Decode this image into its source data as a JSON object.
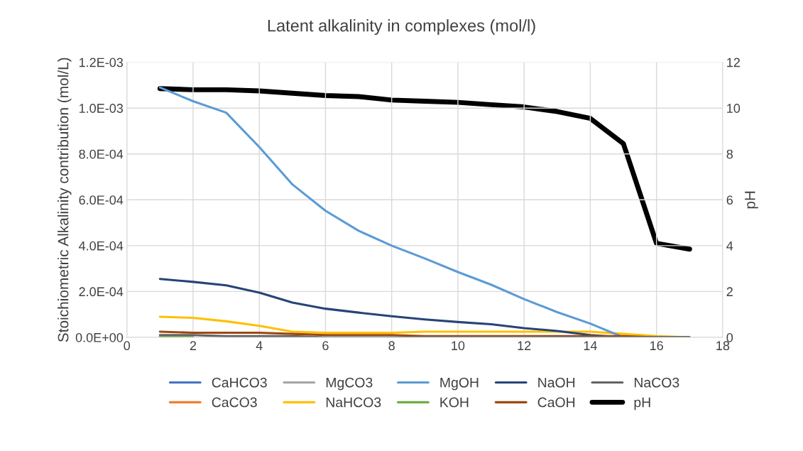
{
  "chart_data": {
    "type": "line",
    "title": "Latent alkalinity in complexes (mol/l)",
    "ylabel": "Stoichiometric Alkalinity contribution (mol/L)",
    "y2label": "pH",
    "x": [
      1,
      2,
      3,
      4,
      5,
      6,
      7,
      8,
      9,
      10,
      11,
      12,
      13,
      14,
      15,
      16,
      17
    ],
    "series": [
      {
        "name": "CaHCO3",
        "color": "#4472c4",
        "values": [
          null,
          null,
          null,
          null,
          null,
          null,
          null,
          null,
          null,
          null,
          null,
          null,
          null,
          null,
          null,
          null,
          null
        ]
      },
      {
        "name": "CaCO3",
        "color": "#ed7d31",
        "values": [
          null,
          null,
          null,
          null,
          null,
          null,
          null,
          null,
          null,
          null,
          null,
          null,
          null,
          null,
          null,
          null,
          null
        ]
      },
      {
        "name": "MgCO3",
        "color": "#a5a5a5",
        "values": [
          null,
          null,
          null,
          null,
          null,
          null,
          null,
          null,
          null,
          null,
          null,
          null,
          null,
          null,
          null,
          null,
          null
        ]
      },
      {
        "name": "NaHCO3",
        "color": "#ffc000",
        "values": [
          9e-05,
          8.5e-05,
          7e-05,
          5e-05,
          2.5e-05,
          2e-05,
          2e-05,
          2e-05,
          2.5e-05,
          2.5e-05,
          2.5e-05,
          2.5e-05,
          2.5e-05,
          2.5e-05,
          1.5e-05,
          5e-06,
          0.0
        ]
      },
      {
        "name": "MgOH",
        "color": "#5b9bd5",
        "values": [
          0.00109,
          0.00103,
          0.00098,
          0.00083,
          0.000667,
          0.000552,
          0.000465,
          0.0004,
          0.000344,
          0.000285,
          0.00023,
          0.000167,
          0.00011,
          6e-05,
          0.0,
          0.0,
          0.0
        ]
      },
      {
        "name": "KOH",
        "color": "#70ad47",
        "values": [
          5e-06,
          5e-06,
          null,
          null,
          null,
          null,
          null,
          null,
          null,
          null,
          null,
          null,
          null,
          null,
          null,
          null,
          null
        ]
      },
      {
        "name": "NaOH",
        "color": "#264478",
        "values": [
          0.000255,
          0.000242,
          0.000227,
          0.000195,
          0.000152,
          0.000125,
          0.000108,
          9.2e-05,
          7.8e-05,
          6.7e-05,
          5.7e-05,
          4e-05,
          2.8e-05,
          1e-05,
          0.0,
          0.0,
          0.0
        ]
      },
      {
        "name": "CaOH",
        "color": "#9e480e",
        "values": [
          2.5e-05,
          2e-05,
          2e-05,
          2e-05,
          1.5e-05,
          1e-05,
          1e-05,
          1e-05,
          5e-06,
          5e-06,
          5e-06,
          5e-06,
          5e-06,
          5e-06,
          5e-06,
          0.0,
          0.0
        ]
      },
      {
        "name": "NaCO3",
        "color": "#636363",
        "values": [
          1e-05,
          1e-05,
          5e-06,
          5e-06,
          5e-06,
          0.0,
          0.0,
          0.0,
          0.0,
          0.0,
          0.0,
          0.0,
          0.0,
          0.0,
          0.0,
          0.0,
          0.0
        ]
      },
      {
        "name": "pH",
        "color": "#000000",
        "axis": "y2",
        "values": [
          10.85,
          10.8,
          10.8,
          10.75,
          10.65,
          10.55,
          10.5,
          10.35,
          10.3,
          10.25,
          10.15,
          10.05,
          9.85,
          9.55,
          8.45,
          4.1,
          3.85
        ]
      }
    ],
    "xlim": [
      0,
      18
    ],
    "xticks": [
      0,
      2,
      4,
      6,
      8,
      10,
      12,
      14,
      16,
      18
    ],
    "ylim": [
      0,
      0.0012
    ],
    "yticks": [
      {
        "value": 0,
        "label": "0.0E+00"
      },
      {
        "value": 0.0002,
        "label": "2.0E-04"
      },
      {
        "value": 0.0004,
        "label": "4.0E-04"
      },
      {
        "value": 0.0006,
        "label": "6.0E-04"
      },
      {
        "value": 0.0008,
        "label": "8.0E-04"
      },
      {
        "value": 0.001,
        "label": "1.0E-03"
      },
      {
        "value": 0.0012,
        "label": "1.2E-03"
      }
    ],
    "y2lim": [
      0,
      12
    ],
    "y2ticks": [
      0,
      2,
      4,
      6,
      8,
      10,
      12
    ],
    "grid": true,
    "legend": "bottom"
  }
}
